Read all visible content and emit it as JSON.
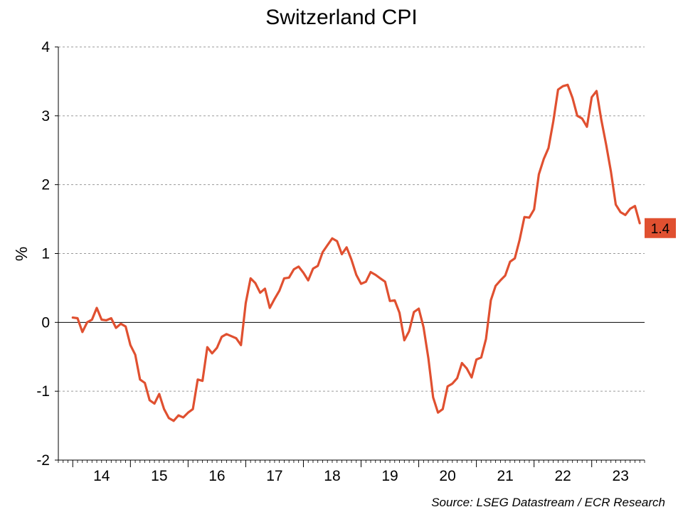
{
  "chart_data": {
    "type": "line",
    "title": "Switzerland CPI",
    "ylabel": "%",
    "xlabel": "",
    "ylim": [
      -2,
      4
    ],
    "yticks": [
      -2,
      -1,
      0,
      1,
      2,
      3,
      4
    ],
    "xlim": [
      "2013-10",
      "2023-12"
    ],
    "xticks": [
      {
        "label": "14",
        "date": "2014-07"
      },
      {
        "label": "15",
        "date": "2015-07"
      },
      {
        "label": "16",
        "date": "2016-07"
      },
      {
        "label": "17",
        "date": "2017-07"
      },
      {
        "label": "18",
        "date": "2018-07"
      },
      {
        "label": "19",
        "date": "2019-07"
      },
      {
        "label": "20",
        "date": "2020-07"
      },
      {
        "label": "21",
        "date": "2021-07"
      },
      {
        "label": "22",
        "date": "2022-07"
      },
      {
        "label": "23",
        "date": "2023-07"
      }
    ],
    "grid": true,
    "line_color": "#e05030",
    "series": [
      {
        "name": "",
        "points": [
          [
            "2014-01",
            0.07
          ],
          [
            "2014-02",
            0.06
          ],
          [
            "2014-03",
            -0.14
          ],
          [
            "2014-04",
            0.0
          ],
          [
            "2014-05",
            0.04
          ],
          [
            "2014-06",
            0.21
          ],
          [
            "2014-07",
            0.04
          ],
          [
            "2014-08",
            0.03
          ],
          [
            "2014-09",
            0.06
          ],
          [
            "2014-10",
            -0.08
          ],
          [
            "2014-11",
            -0.02
          ],
          [
            "2014-12",
            -0.06
          ],
          [
            "2015-01",
            -0.33
          ],
          [
            "2015-02",
            -0.47
          ],
          [
            "2015-03",
            -0.83
          ],
          [
            "2015-04",
            -0.88
          ],
          [
            "2015-05",
            -1.13
          ],
          [
            "2015-06",
            -1.18
          ],
          [
            "2015-07",
            -1.04
          ],
          [
            "2015-08",
            -1.26
          ],
          [
            "2015-09",
            -1.39
          ],
          [
            "2015-10",
            -1.43
          ],
          [
            "2015-11",
            -1.35
          ],
          [
            "2015-12",
            -1.38
          ],
          [
            "2016-01",
            -1.31
          ],
          [
            "2016-02",
            -1.26
          ],
          [
            "2016-03",
            -0.83
          ],
          [
            "2016-04",
            -0.85
          ],
          [
            "2016-05",
            -0.36
          ],
          [
            "2016-06",
            -0.45
          ],
          [
            "2016-07",
            -0.37
          ],
          [
            "2016-08",
            -0.21
          ],
          [
            "2016-09",
            -0.17
          ],
          [
            "2016-10",
            -0.2
          ],
          [
            "2016-11",
            -0.23
          ],
          [
            "2016-12",
            -0.33
          ],
          [
            "2017-01",
            0.28
          ],
          [
            "2017-02",
            0.64
          ],
          [
            "2017-03",
            0.57
          ],
          [
            "2017-04",
            0.43
          ],
          [
            "2017-05",
            0.49
          ],
          [
            "2017-06",
            0.21
          ],
          [
            "2017-07",
            0.34
          ],
          [
            "2017-08",
            0.46
          ],
          [
            "2017-09",
            0.64
          ],
          [
            "2017-10",
            0.65
          ],
          [
            "2017-11",
            0.77
          ],
          [
            "2017-12",
            0.81
          ],
          [
            "2018-01",
            0.72
          ],
          [
            "2018-02",
            0.61
          ],
          [
            "2018-03",
            0.78
          ],
          [
            "2018-04",
            0.82
          ],
          [
            "2018-05",
            1.02
          ],
          [
            "2018-06",
            1.12
          ],
          [
            "2018-07",
            1.22
          ],
          [
            "2018-08",
            1.18
          ],
          [
            "2018-09",
            0.99
          ],
          [
            "2018-10",
            1.09
          ],
          [
            "2018-11",
            0.91
          ],
          [
            "2018-12",
            0.69
          ],
          [
            "2019-01",
            0.56
          ],
          [
            "2019-02",
            0.59
          ],
          [
            "2019-03",
            0.73
          ],
          [
            "2019-04",
            0.69
          ],
          [
            "2019-05",
            0.64
          ],
          [
            "2019-06",
            0.59
          ],
          [
            "2019-07",
            0.31
          ],
          [
            "2019-08",
            0.32
          ],
          [
            "2019-09",
            0.14
          ],
          [
            "2019-10",
            -0.26
          ],
          [
            "2019-11",
            -0.13
          ],
          [
            "2019-12",
            0.15
          ],
          [
            "2020-01",
            0.2
          ],
          [
            "2020-02",
            -0.07
          ],
          [
            "2020-03",
            -0.52
          ],
          [
            "2020-04",
            -1.09
          ],
          [
            "2020-05",
            -1.31
          ],
          [
            "2020-06",
            -1.26
          ],
          [
            "2020-07",
            -0.93
          ],
          [
            "2020-08",
            -0.89
          ],
          [
            "2020-09",
            -0.81
          ],
          [
            "2020-10",
            -0.59
          ],
          [
            "2020-11",
            -0.67
          ],
          [
            "2020-12",
            -0.8
          ],
          [
            "2021-01",
            -0.54
          ],
          [
            "2021-02",
            -0.51
          ],
          [
            "2021-03",
            -0.24
          ],
          [
            "2021-04",
            0.32
          ],
          [
            "2021-05",
            0.53
          ],
          [
            "2021-06",
            0.61
          ],
          [
            "2021-07",
            0.68
          ],
          [
            "2021-08",
            0.88
          ],
          [
            "2021-09",
            0.93
          ],
          [
            "2021-10",
            1.2
          ],
          [
            "2021-11",
            1.53
          ],
          [
            "2021-12",
            1.52
          ],
          [
            "2022-01",
            1.64
          ],
          [
            "2022-02",
            2.15
          ],
          [
            "2022-03",
            2.37
          ],
          [
            "2022-04",
            2.53
          ],
          [
            "2022-05",
            2.92
          ],
          [
            "2022-06",
            3.38
          ],
          [
            "2022-07",
            3.43
          ],
          [
            "2022-08",
            3.45
          ],
          [
            "2022-09",
            3.26
          ],
          [
            "2022-10",
            3.0
          ],
          [
            "2022-11",
            2.96
          ],
          [
            "2022-12",
            2.84
          ],
          [
            "2023-01",
            3.27
          ],
          [
            "2023-02",
            3.36
          ],
          [
            "2023-03",
            2.94
          ],
          [
            "2023-04",
            2.58
          ],
          [
            "2023-05",
            2.19
          ],
          [
            "2023-06",
            1.71
          ],
          [
            "2023-07",
            1.6
          ],
          [
            "2023-08",
            1.56
          ],
          [
            "2023-09",
            1.65
          ],
          [
            "2023-10",
            1.69
          ],
          [
            "2023-11",
            1.44
          ]
        ]
      }
    ],
    "end_label": {
      "text": "1.4",
      "value": 1.4,
      "color": "#e05030"
    },
    "source": "Source: LSEG Datastream / ECR Research"
  }
}
